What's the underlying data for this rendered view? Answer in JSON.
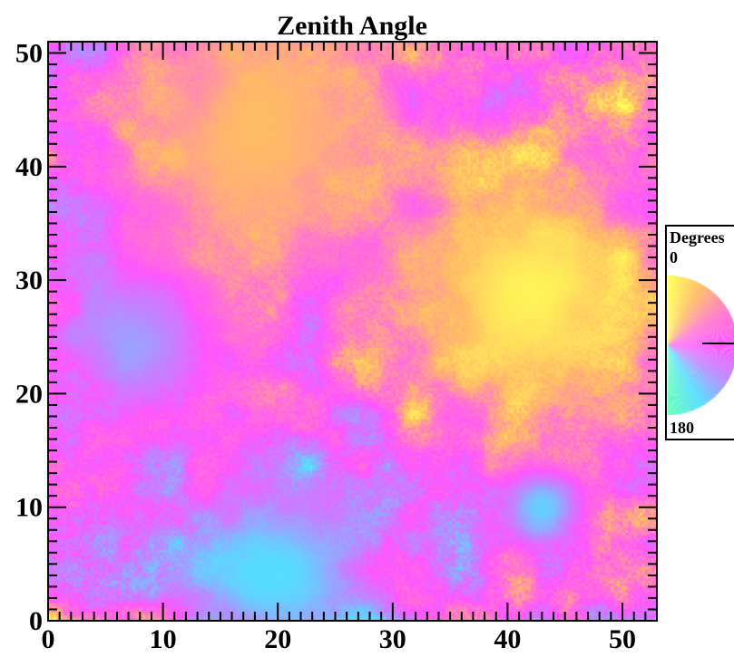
{
  "chart_data": {
    "type": "heatmap",
    "title": "Zenith Angle",
    "xlabel": "",
    "ylabel": "",
    "xlim": [
      0,
      53
    ],
    "ylim": [
      0,
      51
    ],
    "x_ticks": [
      0,
      10,
      20,
      30,
      40,
      50
    ],
    "y_ticks": [
      0,
      10,
      20,
      30,
      40,
      50
    ],
    "grid": false,
    "colorbar": {
      "title": "Degrees",
      "min_label": "0",
      "max_label": "180",
      "range": [
        0,
        180
      ],
      "shape": "half-disc",
      "orientation": "right"
    },
    "value_range": [
      0,
      180
    ],
    "colormap": [
      {
        "value": 0,
        "color": "#ffff55"
      },
      {
        "value": 30,
        "color": "#ffbb66"
      },
      {
        "value": 60,
        "color": "#ff77cc"
      },
      {
        "value": 90,
        "color": "#ff55ff"
      },
      {
        "value": 120,
        "color": "#bb88ff"
      },
      {
        "value": 150,
        "color": "#55ddff"
      },
      {
        "value": 180,
        "color": "#66ffbb"
      }
    ],
    "features": [
      {
        "label": "bright zenith region (low angle)",
        "center": [
          42,
          29
        ],
        "radius": 9,
        "value": 5
      },
      {
        "label": "high-angle patch",
        "center": [
          20,
          4
        ],
        "radius": 7,
        "value": 150
      },
      {
        "label": "high-angle patch",
        "center": [
          8,
          25
        ],
        "radius": 6,
        "value": 140
      },
      {
        "label": "low-angle band",
        "center": [
          18,
          43
        ],
        "radius": 10,
        "value": 30
      },
      {
        "label": "high-angle patch",
        "center": [
          43,
          10
        ],
        "radius": 3,
        "value": 145
      }
    ]
  }
}
